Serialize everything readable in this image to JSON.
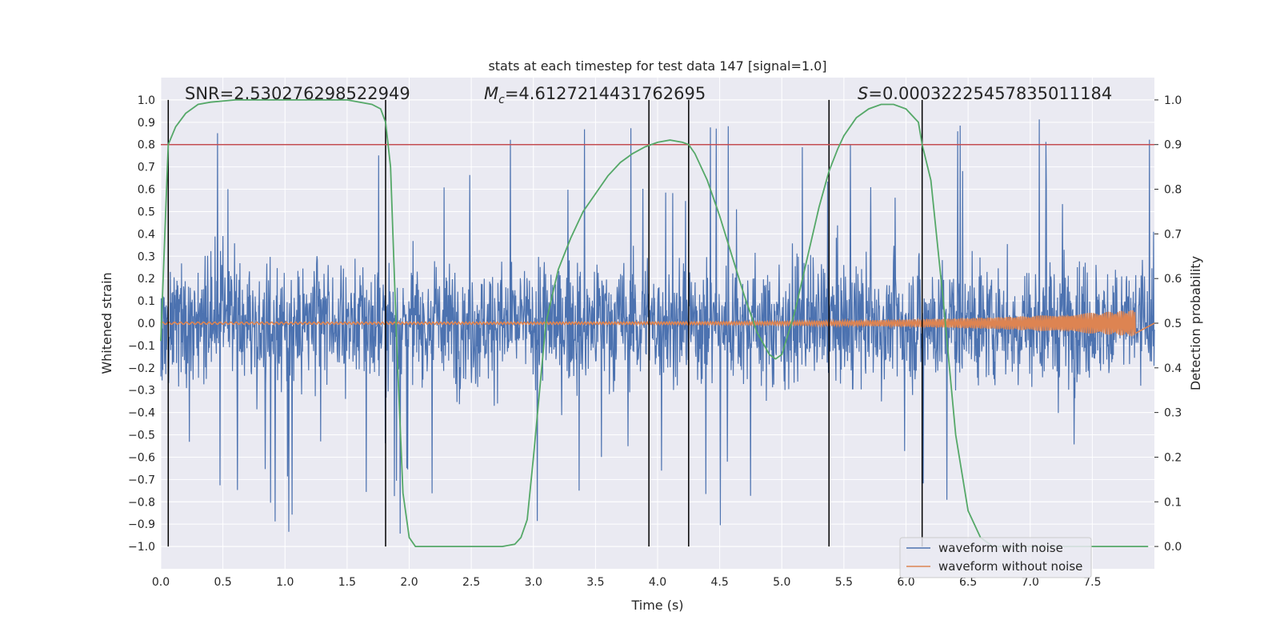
{
  "chart_data": {
    "type": "line",
    "title": "stats at each timestep for test data 147 [signal=1.0]",
    "xlabel": "Time (s)",
    "ylabel": "Whitened strain",
    "y2label": "Detection probability",
    "xlim": [
      0.0,
      8.0
    ],
    "ylim": [
      -1.1,
      1.1
    ],
    "y2lim": [
      -0.05,
      1.05
    ],
    "x_ticks": [
      "0.0",
      "0.5",
      "1.0",
      "1.5",
      "2.0",
      "2.5",
      "3.0",
      "3.5",
      "4.0",
      "4.5",
      "5.0",
      "5.5",
      "6.0",
      "6.5",
      "7.0",
      "7.5"
    ],
    "y_ticks": [
      "1.0",
      "0.9",
      "0.8",
      "0.7",
      "0.6",
      "0.5",
      "0.4",
      "0.3",
      "0.2",
      "0.1",
      "0.0",
      "−0.1",
      "−0.2",
      "−0.3",
      "−0.4",
      "−0.5",
      "−0.6",
      "−0.7",
      "−0.8",
      "−0.9",
      "−1.0"
    ],
    "y2_ticks": [
      "1.0",
      "0.9",
      "0.8",
      "0.7",
      "0.6",
      "0.5",
      "0.4",
      "0.3",
      "0.2",
      "0.1",
      "0.0"
    ],
    "annotations": {
      "snr": "SNR=2.530276298522949",
      "mc_symbol": "M",
      "mc_sub": "c",
      "mc_value": "=4.6127214431762695",
      "s_symbol": "S",
      "s_value": "=0.00032225457835011184"
    },
    "threshold": 0.9,
    "vertical_lines": [
      0.06,
      1.81,
      3.93,
      4.25,
      5.38,
      6.13
    ],
    "series": [
      {
        "name": "waveform with noise",
        "color": "#4c72b0",
        "style": "noise",
        "amplitude_typical": 0.35,
        "amplitude_peak": 0.95
      },
      {
        "name": "waveform without noise",
        "color": "#dd8452",
        "style": "chirp",
        "amplitude_start": 0.005,
        "amplitude_end": 0.06,
        "end_time": 7.85
      },
      {
        "name": "detection probability",
        "color": "#55a868",
        "axis": "right",
        "x": [
          0.0,
          0.06,
          0.12,
          0.2,
          0.3,
          0.4,
          0.6,
          1.0,
          1.5,
          1.7,
          1.77,
          1.81,
          1.85,
          1.9,
          1.95,
          2.0,
          2.05,
          2.1,
          2.5,
          2.75,
          2.85,
          2.9,
          2.95,
          3.0,
          3.1,
          3.2,
          3.3,
          3.4,
          3.5,
          3.6,
          3.7,
          3.8,
          3.9,
          4.0,
          4.1,
          4.2,
          4.25,
          4.3,
          4.4,
          4.5,
          4.6,
          4.7,
          4.8,
          4.9,
          4.95,
          5.0,
          5.1,
          5.2,
          5.3,
          5.38,
          5.45,
          5.5,
          5.6,
          5.7,
          5.8,
          5.9,
          6.0,
          6.1,
          6.13,
          6.2,
          6.3,
          6.4,
          6.5,
          6.6,
          6.7,
          7.0,
          7.5,
          7.95
        ],
        "values": [
          0.46,
          0.9,
          0.94,
          0.97,
          0.99,
          0.995,
          1.0,
          1.0,
          1.0,
          0.99,
          0.98,
          0.95,
          0.85,
          0.45,
          0.12,
          0.02,
          0.0,
          0.0,
          0.0,
          0.0,
          0.005,
          0.02,
          0.06,
          0.2,
          0.5,
          0.62,
          0.69,
          0.75,
          0.79,
          0.83,
          0.86,
          0.88,
          0.895,
          0.905,
          0.91,
          0.905,
          0.9,
          0.88,
          0.82,
          0.74,
          0.65,
          0.56,
          0.48,
          0.43,
          0.42,
          0.43,
          0.52,
          0.64,
          0.76,
          0.84,
          0.89,
          0.92,
          0.96,
          0.98,
          0.99,
          0.99,
          0.98,
          0.95,
          0.9,
          0.82,
          0.55,
          0.25,
          0.08,
          0.02,
          0.0,
          0.0,
          0.0,
          0.0
        ]
      }
    ],
    "legend_position": "lower-right"
  }
}
